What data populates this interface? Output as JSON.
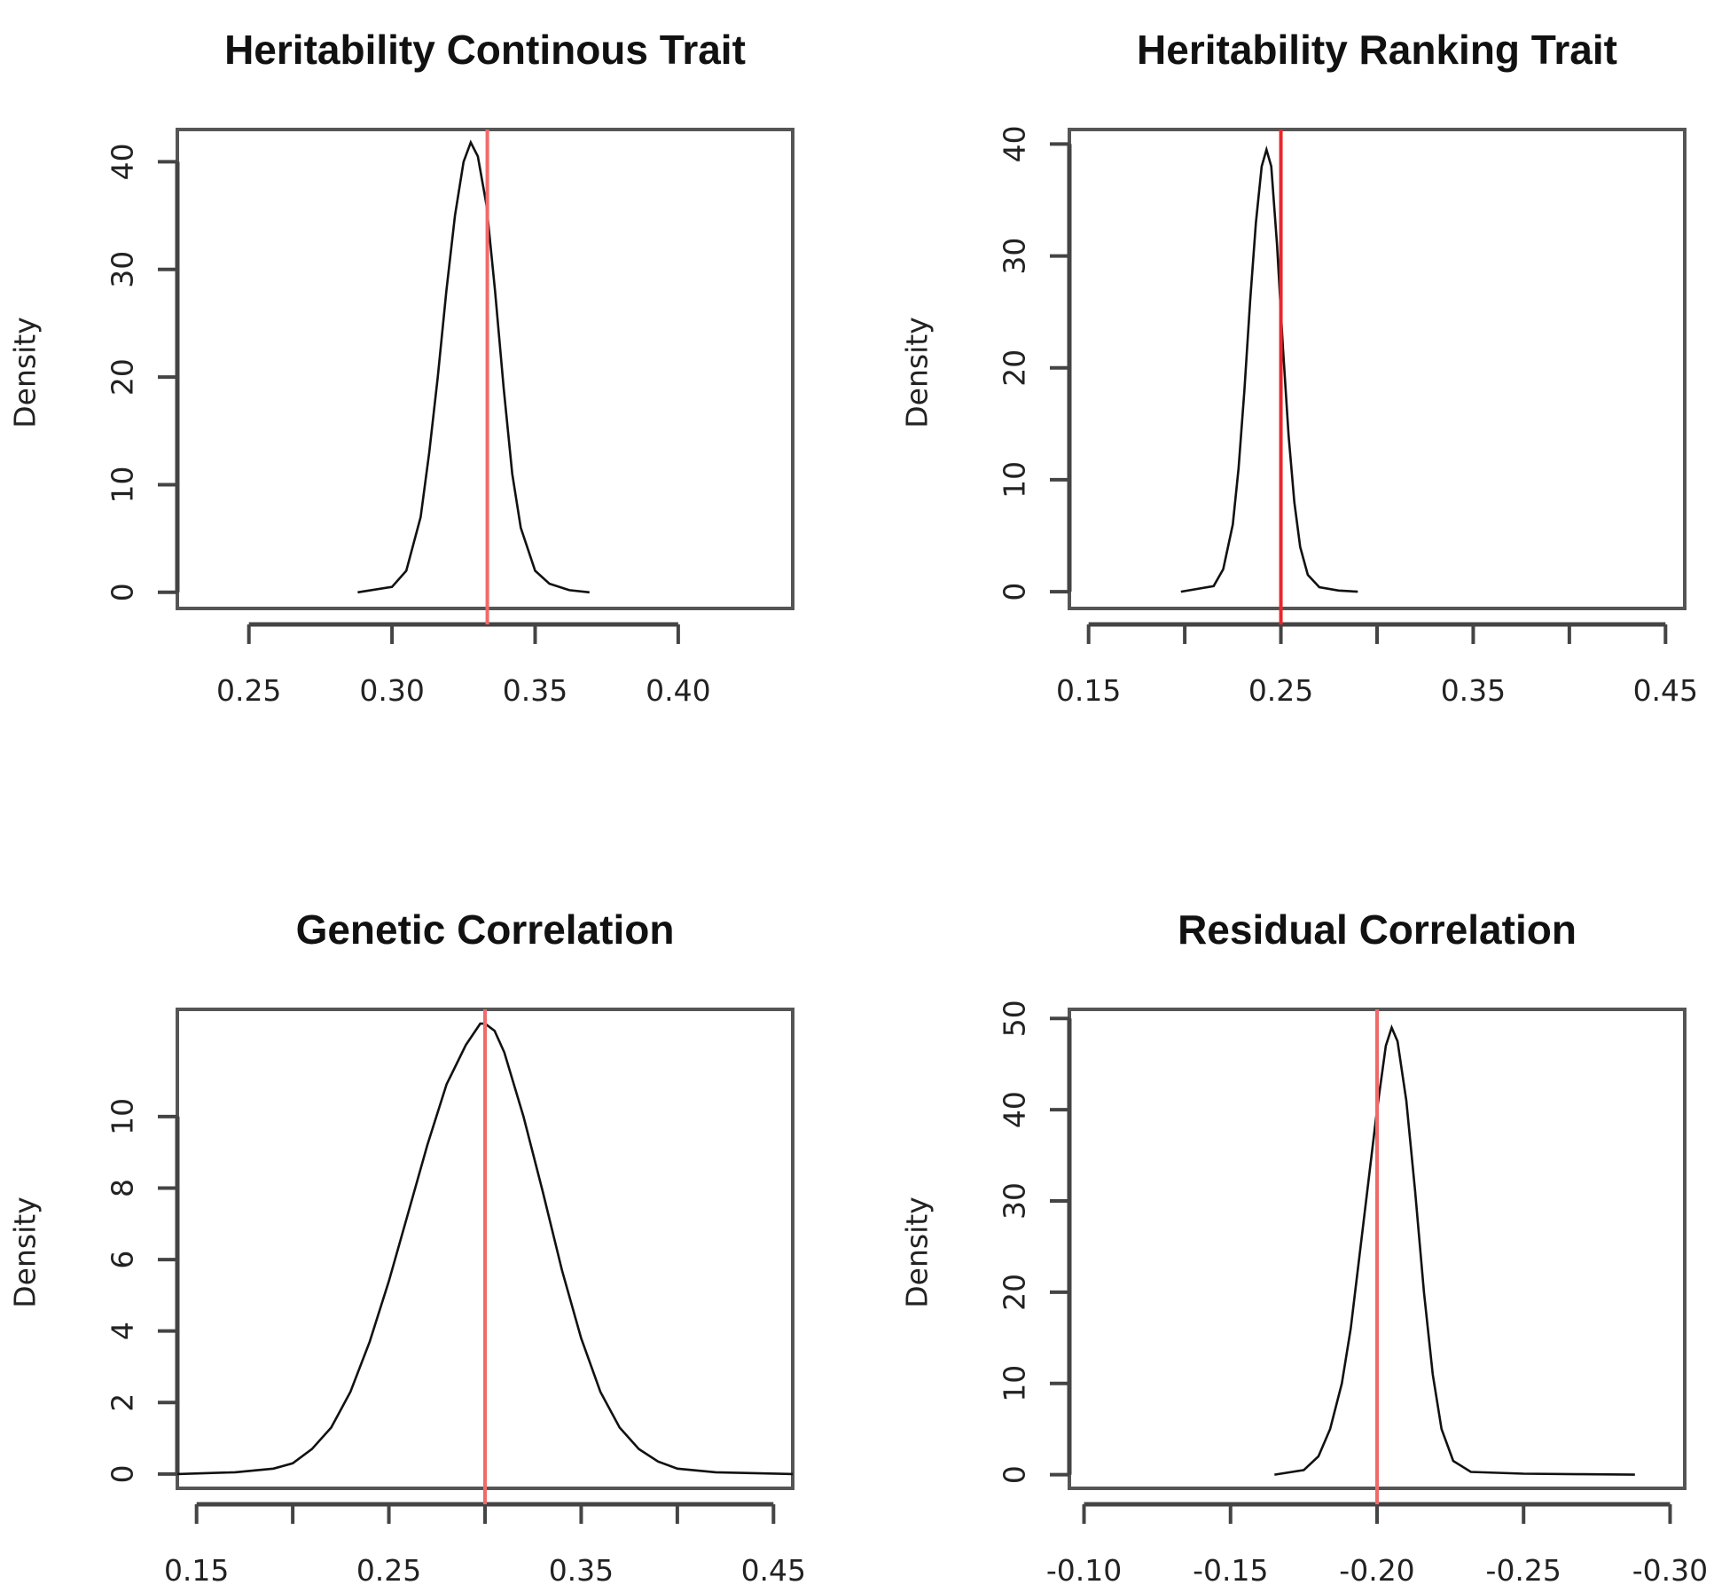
{
  "colors": {
    "curve": "#111111",
    "reference_line": "#e8282b",
    "frame": "#555555"
  },
  "chart_data": [
    {
      "type": "line",
      "title": "Heritability Continous Trait",
      "xlabel": "",
      "ylabel": "Density",
      "xlim": [
        0.225,
        0.44
      ],
      "ylim": [
        -1.5,
        43
      ],
      "xticks": [
        0.25,
        0.3,
        0.35,
        0.4
      ],
      "xtick_labels": [
        "0.25",
        "0.30",
        "0.35",
        "0.40"
      ],
      "yticks": [
        0,
        10,
        20,
        30,
        40
      ],
      "ytick_labels": [
        "0",
        "10",
        "20",
        "30",
        "40"
      ],
      "reference_line": 0.3333,
      "reference_color": "#f06a6a",
      "series": [
        {
          "name": "density",
          "x": [
            0.288,
            0.3,
            0.305,
            0.31,
            0.313,
            0.316,
            0.319,
            0.322,
            0.325,
            0.3275,
            0.33,
            0.333,
            0.336,
            0.339,
            0.342,
            0.345,
            0.35,
            0.355,
            0.362,
            0.369
          ],
          "y": [
            0.0,
            0.5,
            2.0,
            7.0,
            13.0,
            20.0,
            28.0,
            35.0,
            40.0,
            41.8,
            40.5,
            36.0,
            28.0,
            19.0,
            11.0,
            6.0,
            2.0,
            0.8,
            0.2,
            0.0
          ]
        }
      ]
    },
    {
      "type": "line",
      "title": "Heritability Ranking Trait",
      "xlabel": "",
      "ylabel": "Density",
      "xlim": [
        0.14,
        0.46
      ],
      "ylim": [
        -1.5,
        41.3
      ],
      "xticks": [
        0.15,
        0.2,
        0.25,
        0.3,
        0.35,
        0.4,
        0.45
      ],
      "xtick_labels": [
        "0.15",
        "",
        "0.25",
        "",
        "0.35",
        "",
        "0.45"
      ],
      "yticks": [
        0,
        10,
        20,
        30,
        40
      ],
      "ytick_labels": [
        "0",
        "10",
        "20",
        "30",
        "40"
      ],
      "reference_line": 0.25,
      "reference_color": "#e8282b",
      "series": [
        {
          "name": "density",
          "x": [
            0.198,
            0.215,
            0.22,
            0.225,
            0.228,
            0.231,
            0.234,
            0.237,
            0.24,
            0.2425,
            0.245,
            0.248,
            0.251,
            0.254,
            0.257,
            0.26,
            0.264,
            0.27,
            0.28,
            0.29
          ],
          "y": [
            0.0,
            0.5,
            2.0,
            6.0,
            11.0,
            18.0,
            26.0,
            33.0,
            38.0,
            39.5,
            38.0,
            31.0,
            22.0,
            14.0,
            8.0,
            4.0,
            1.5,
            0.4,
            0.1,
            0.0
          ]
        }
      ]
    },
    {
      "type": "line",
      "title": "Genetic Correlation",
      "xlabel": "",
      "ylabel": "Density",
      "xlim": [
        0.14,
        0.46
      ],
      "ylim": [
        -0.4,
        13.0
      ],
      "xticks": [
        0.15,
        0.2,
        0.25,
        0.3,
        0.35,
        0.4,
        0.45
      ],
      "xtick_labels": [
        "0.15",
        "",
        "0.25",
        "",
        "0.35",
        "",
        "0.45"
      ],
      "yticks": [
        0,
        2,
        4,
        6,
        8,
        10
      ],
      "ytick_labels": [
        "0",
        "2",
        "4",
        "6",
        "8",
        "10"
      ],
      "reference_line": 0.3,
      "reference_color": "#f06a6a",
      "series": [
        {
          "name": "density",
          "x": [
            0.14,
            0.17,
            0.19,
            0.2,
            0.21,
            0.22,
            0.23,
            0.24,
            0.25,
            0.26,
            0.27,
            0.28,
            0.29,
            0.2975,
            0.3,
            0.305,
            0.31,
            0.32,
            0.33,
            0.34,
            0.35,
            0.36,
            0.37,
            0.38,
            0.39,
            0.4,
            0.42,
            0.46
          ],
          "y": [
            0.0,
            0.05,
            0.15,
            0.3,
            0.7,
            1.3,
            2.3,
            3.7,
            5.4,
            7.3,
            9.2,
            10.9,
            12.0,
            12.6,
            12.6,
            12.4,
            11.8,
            10.0,
            7.9,
            5.7,
            3.8,
            2.3,
            1.3,
            0.7,
            0.35,
            0.15,
            0.05,
            0.0
          ]
        }
      ]
    },
    {
      "type": "line",
      "title": "Residual Correlation",
      "xlabel": "",
      "ylabel": "Density",
      "xlim": [
        -0.095,
        -0.305
      ],
      "ylim": [
        -1.5,
        51
      ],
      "xticks": [
        -0.1,
        -0.15,
        -0.2,
        -0.25,
        -0.3
      ],
      "xtick_labels": [
        "-0.10",
        "-0.15",
        "-0.20",
        "-0.25",
        "-0.30"
      ],
      "yticks": [
        0,
        10,
        20,
        30,
        40,
        50
      ],
      "ytick_labels": [
        "0",
        "10",
        "20",
        "30",
        "40",
        "50"
      ],
      "reference_line": -0.2,
      "reference_color": "#f06a6a",
      "series": [
        {
          "name": "density",
          "x": [
            -0.165,
            -0.175,
            -0.18,
            -0.184,
            -0.188,
            -0.191,
            -0.194,
            -0.197,
            -0.2,
            -0.203,
            -0.205,
            -0.207,
            -0.21,
            -0.213,
            -0.216,
            -0.219,
            -0.222,
            -0.226,
            -0.232,
            -0.25,
            -0.27,
            -0.288
          ],
          "y": [
            0.0,
            0.5,
            2.0,
            5.0,
            10.0,
            16.0,
            24.0,
            32.0,
            40.0,
            47.0,
            49.0,
            47.5,
            41.0,
            31.0,
            20.0,
            11.0,
            5.0,
            1.5,
            0.3,
            0.1,
            0.05,
            0.0
          ]
        }
      ]
    }
  ]
}
